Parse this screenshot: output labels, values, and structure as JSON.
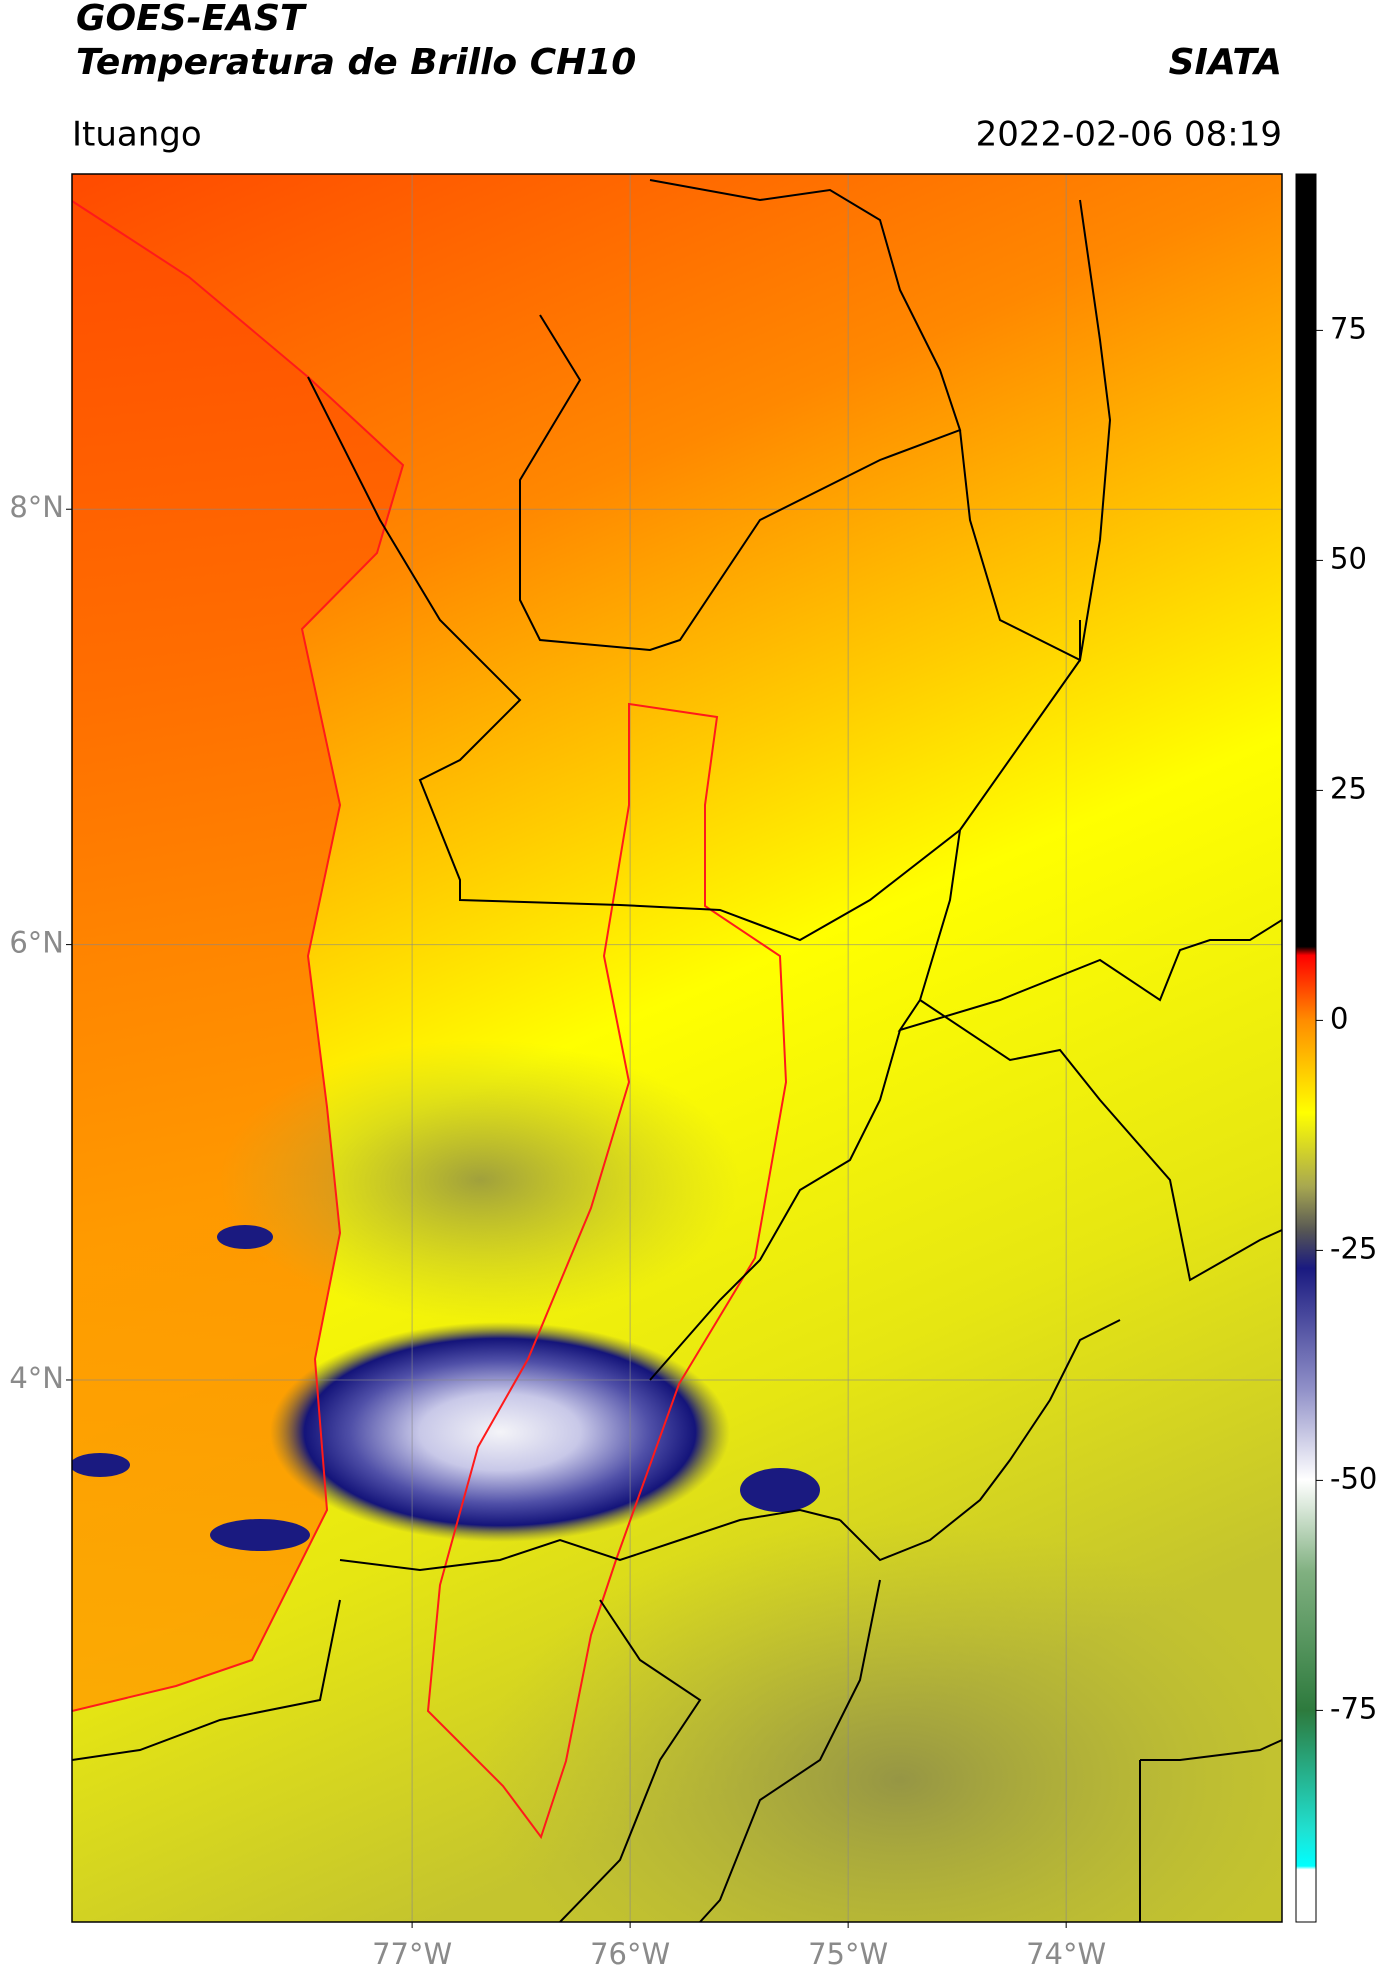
{
  "title": "GOES-EAST",
  "subtitle": "Temperatura de Brillo CH10",
  "source": "SIATA",
  "location": "Ituango",
  "datetime": "2022-02-06 08:19",
  "map": {
    "lon_range": [
      -78.56,
      -73.01
    ],
    "lat_range": [
      1.51,
      9.54
    ],
    "lat_ticks": [
      {
        "value": 8,
        "label": "8°N"
      },
      {
        "value": 6,
        "label": "6°N"
      },
      {
        "value": 4,
        "label": "4°N"
      }
    ],
    "lon_ticks": [
      {
        "value": -77,
        "label": "77°W"
      },
      {
        "value": -76,
        "label": "76°W"
      },
      {
        "value": -75,
        "label": "75°W"
      },
      {
        "value": -74,
        "label": "74°W"
      }
    ]
  },
  "colorbar": {
    "clim": [
      -98,
      92
    ],
    "ticks": [
      75,
      50,
      25,
      0,
      -25,
      -50,
      -75
    ]
  }
}
